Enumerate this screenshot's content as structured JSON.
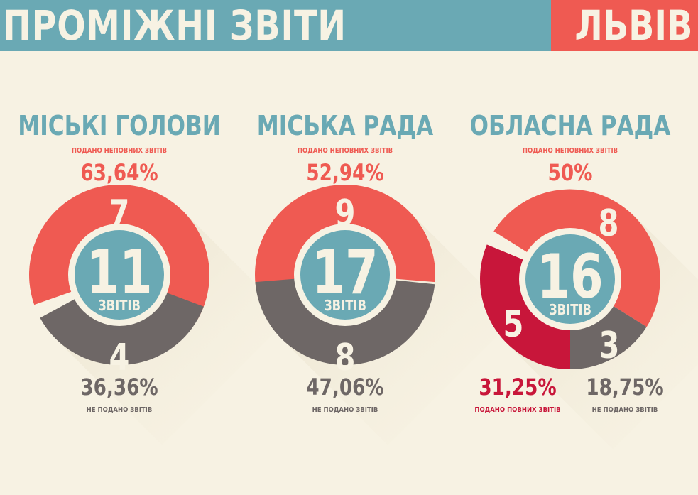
{
  "header": {
    "title": "ПРОМІЖНІ ЗВІТИ",
    "city": "ЛЬВІВ"
  },
  "colors": {
    "banner": "#6aa9b4",
    "city_banner": "#ef5a52",
    "partial": "#ef5a52",
    "not_submitted": "#6e6766",
    "full": "#c8163a",
    "center": "#6aa9b4",
    "background": "#f7f2e3"
  },
  "chart_data": [
    {
      "type": "pie",
      "title": "МІСЬКІ ГОЛОВИ",
      "total": "11",
      "total_label": "ЗВІТІВ",
      "slices": [
        {
          "key": "partial",
          "value": 7,
          "label": "7",
          "percent": "63,64%",
          "caption": "ПОДАНО НЕПОВНИХ ЗВІТІВ"
        },
        {
          "key": "not_submitted",
          "value": 4,
          "label": "4",
          "percent": "36,36%",
          "caption": "НЕ ПОДАНО ЗВІТІВ"
        }
      ]
    },
    {
      "type": "pie",
      "title": "МІСЬКА РАДА",
      "total": "17",
      "total_label": "ЗВІТІВ",
      "slices": [
        {
          "key": "partial",
          "value": 9,
          "label": "9",
          "percent": "52,94%",
          "caption": "ПОДАНО НЕПОВНИХ ЗВІТІВ"
        },
        {
          "key": "not_submitted",
          "value": 8,
          "label": "8",
          "percent": "47,06%",
          "caption": "НЕ ПОДАНО ЗВІТІВ"
        }
      ]
    },
    {
      "type": "pie",
      "title": "ОБЛАСНА РАДА",
      "total": "16",
      "total_label": "ЗВІТІВ",
      "slices": [
        {
          "key": "partial",
          "value": 8,
          "label": "8",
          "percent": "50%",
          "caption": "ПОДАНО НЕПОВНИХ ЗВІТІВ"
        },
        {
          "key": "not_submitted",
          "value": 3,
          "label": "3",
          "percent": "18,75%",
          "caption": "НЕ ПОДАНО ЗВІТІВ"
        },
        {
          "key": "full",
          "value": 5,
          "label": "5",
          "percent": "31,25%",
          "caption": "ПОДАНО ПОВНИХ ЗВІТІВ"
        }
      ]
    }
  ]
}
